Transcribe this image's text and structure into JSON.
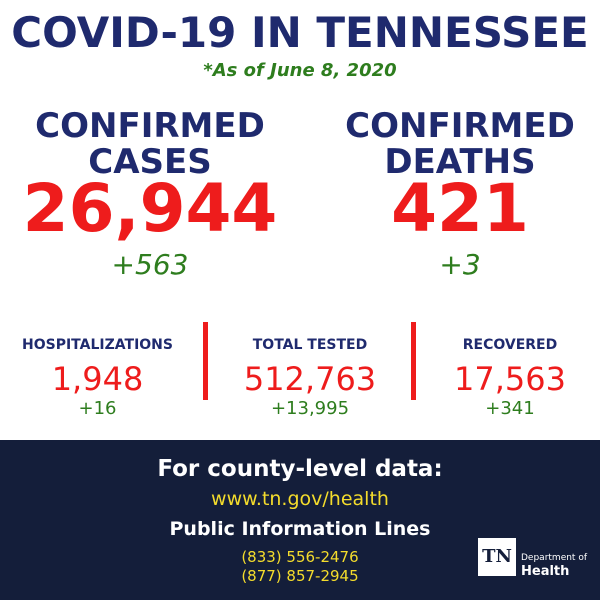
{
  "header": {
    "title": "COVID-19 IN TENNESSEE",
    "subtitle": "*As of June 8, 2020"
  },
  "main_stats": [
    {
      "label": [
        "CONFIRMED",
        "CASES"
      ],
      "value": "26,944",
      "change": "+563"
    },
    {
      "label": [
        "CONFIRMED",
        "DEATHS"
      ],
      "value": "421",
      "change": "+3"
    }
  ],
  "secondary_stats": [
    {
      "label": "HOSPITALIZATIONS",
      "value": "1,948",
      "change": "+16"
    },
    {
      "label": "TOTAL TESTED",
      "value": "512,763",
      "change": "+13,995"
    },
    {
      "label": "RECOVERED",
      "value": "17,563",
      "change": "+341"
    }
  ],
  "footer": {
    "heading": "For county-level data:",
    "url": "www.tn.gov/health",
    "phone_heading": "Public Information Lines",
    "phones": [
      "(833) 556-2476",
      "(877) 857-2945"
    ],
    "logo": {
      "mark": "TN",
      "line1": "Department of",
      "line2": "Health"
    }
  }
}
